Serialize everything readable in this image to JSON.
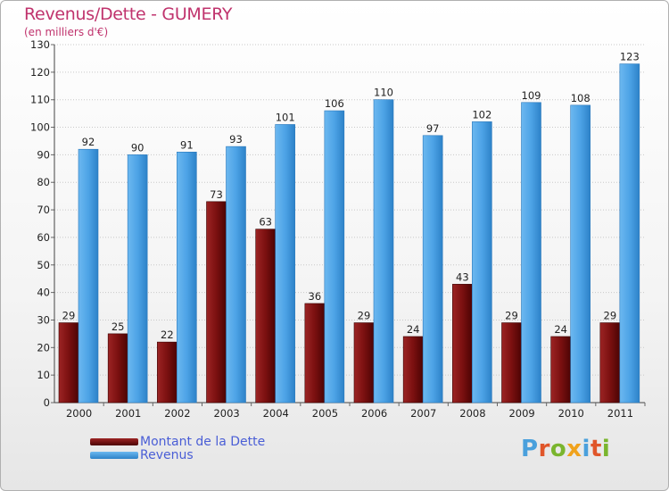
{
  "title": "Revenus/Dette - GUMERY",
  "subtitle": "(en milliers d'€)",
  "colors": {
    "dette": "#7b1010",
    "revenus": "#4da3e6",
    "title": "#c0336d",
    "legend_text": "#4a5ed6"
  },
  "legend": {
    "dette": "Montant de la Dette",
    "revenus": "Revenus"
  },
  "logo": {
    "letters": [
      "P",
      "r",
      "o",
      "x",
      "i",
      "t",
      "i"
    ],
    "colors": [
      "#4aa0dc",
      "#e0562a",
      "#7ab52e",
      "#f0a21c",
      "#4aa0dc",
      "#e0562a",
      "#7ab52e"
    ]
  },
  "chart_data": {
    "type": "bar",
    "title": "Revenus/Dette - GUMERY",
    "ylabel": "(en milliers d'€)",
    "xlabel": "",
    "ylim": [
      0,
      130
    ],
    "yticks": [
      0,
      10,
      20,
      30,
      40,
      50,
      60,
      70,
      80,
      90,
      100,
      110,
      120,
      130
    ],
    "grid": true,
    "legend_position": "bottom-left",
    "categories": [
      "2000",
      "2001",
      "2002",
      "2003",
      "2004",
      "2005",
      "2006",
      "2007",
      "2008",
      "2009",
      "2010",
      "2011"
    ],
    "series": [
      {
        "name": "Montant de la Dette",
        "values": [
          29,
          25,
          22,
          73,
          63,
          36,
          29,
          24,
          43,
          29,
          24,
          29
        ]
      },
      {
        "name": "Revenus",
        "values": [
          92,
          90,
          91,
          93,
          101,
          106,
          110,
          97,
          102,
          109,
          108,
          123
        ]
      }
    ]
  }
}
